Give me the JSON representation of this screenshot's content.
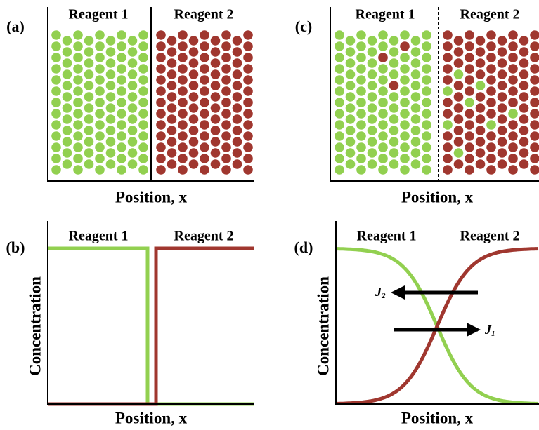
{
  "panels": [
    {
      "label": "(a)",
      "regions": [
        "Reagent 1",
        "Reagent 2"
      ],
      "x_axis": "Position, x"
    },
    {
      "label": "(b)",
      "regions": [
        "Reagent 1",
        "Reagent 2"
      ],
      "x_axis": "Position, x",
      "y_axis": "Concentration"
    },
    {
      "label": "(c)",
      "regions": [
        "Reagent 1",
        "Reagent 2"
      ],
      "x_axis": "Position, x"
    },
    {
      "label": "(d)",
      "regions": [
        "Reagent 1",
        "Reagent 2"
      ],
      "x_axis": "Position, x",
      "y_axis": "Concentration"
    }
  ],
  "fluxes": [
    {
      "symbol": "J",
      "subscript": "2"
    },
    {
      "symbol": "J",
      "subscript": "1"
    }
  ]
}
